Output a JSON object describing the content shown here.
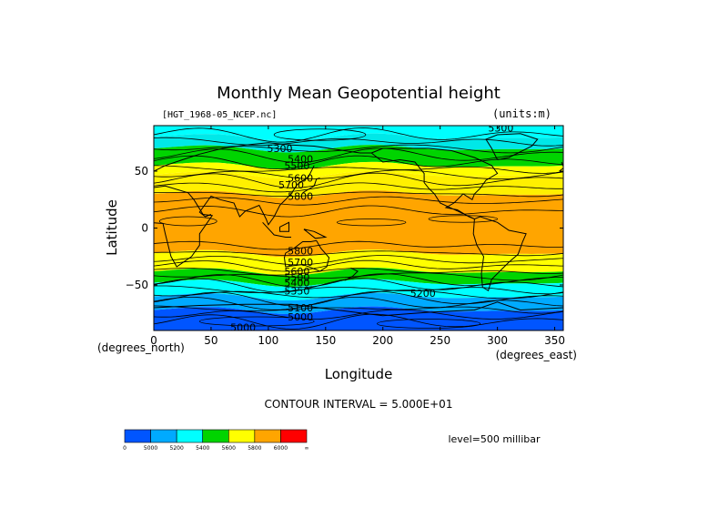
{
  "chart_data": {
    "type": "heatmap",
    "title": "Monthly Mean Geopotential height",
    "subtitle_left": "[HGT_1968-05_NCEP.nc]",
    "subtitle_right": "(units:m)",
    "xlabel": "Longitude",
    "ylabel": "Latitude",
    "x_unit_label": "(degrees_east)",
    "y_unit_label": "(degrees_north)",
    "xlim": [
      0,
      357.5
    ],
    "ylim": [
      -90,
      90
    ],
    "x_ticks": [
      "0",
      "50",
      "100",
      "150",
      "200",
      "250",
      "300",
      "350"
    ],
    "x_tick_values": [
      0,
      50,
      100,
      150,
      200,
      250,
      300,
      350
    ],
    "y_ticks": [
      "50",
      "0",
      "−50"
    ],
    "y_tick_values": [
      50,
      0,
      -50
    ],
    "contour_interval_text": "CONTOUR INTERVAL = 5.000E+01",
    "level_text": "level=500 millibar",
    "color_bands": [
      {
        "lat_from": 90,
        "lat_to": 80,
        "color": "#00ffff"
      },
      {
        "lat_from": 80,
        "lat_to": 70,
        "color": "#00e8e8"
      },
      {
        "lat_from": 70,
        "lat_to": 55,
        "color": "#00d400"
      },
      {
        "lat_from": 55,
        "lat_to": 47,
        "color": "#ffff00"
      },
      {
        "lat_from": 47,
        "lat_to": 30,
        "color": "#fff000"
      },
      {
        "lat_from": 30,
        "lat_to": -22,
        "color": "#ffa500"
      },
      {
        "lat_from": -22,
        "lat_to": -38,
        "color": "#ffff00"
      },
      {
        "lat_from": -38,
        "lat_to": -48,
        "color": "#00d400"
      },
      {
        "lat_from": -48,
        "lat_to": -60,
        "color": "#00ffff"
      },
      {
        "lat_from": -60,
        "lat_to": -72,
        "color": "#00aaff"
      },
      {
        "lat_from": -72,
        "lat_to": -90,
        "color": "#0055ff"
      }
    ],
    "contour_labels": [
      {
        "text": "5300",
        "lon": 110,
        "lat": 70
      },
      {
        "text": "5400",
        "lon": 128,
        "lat": 61
      },
      {
        "text": "5500",
        "lon": 125,
        "lat": 55
      },
      {
        "text": "5600",
        "lon": 128,
        "lat": 44
      },
      {
        "text": "5700",
        "lon": 120,
        "lat": 38
      },
      {
        "text": "5800",
        "lon": 128,
        "lat": 28
      },
      {
        "text": "5300",
        "lon": 303,
        "lat": 88
      },
      {
        "text": "5800",
        "lon": 128,
        "lat": -20
      },
      {
        "text": "5700",
        "lon": 128,
        "lat": -30
      },
      {
        "text": "5600",
        "lon": 125,
        "lat": -38
      },
      {
        "text": "5500",
        "lon": 125,
        "lat": -43
      },
      {
        "text": "5400",
        "lon": 125,
        "lat": -48
      },
      {
        "text": "5350",
        "lon": 125,
        "lat": -55
      },
      {
        "text": "5200",
        "lon": 235,
        "lat": -57
      },
      {
        "text": "5100",
        "lon": 128,
        "lat": -70
      },
      {
        "text": "5000",
        "lon": 128,
        "lat": -78
      },
      {
        "text": "5000",
        "lon": 78,
        "lat": -87
      }
    ],
    "colorbar": {
      "colors": [
        "#0055ff",
        "#00aaff",
        "#00ffff",
        "#00d400",
        "#ffff00",
        "#ffa500",
        "#ff0000"
      ],
      "tick_labels": [
        "0",
        "5000",
        "5200",
        "5400",
        "5600",
        "5800",
        "6000",
        "∞"
      ]
    }
  }
}
